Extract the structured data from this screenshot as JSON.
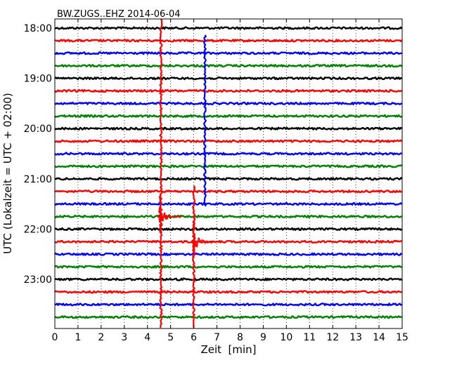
{
  "chart_data": {
    "type": "line",
    "title": "BW.ZUGS..EHZ 2014-06-04",
    "xlabel": "Zeit  [min]",
    "ylabel": "UTC (Lokalzeit = UTC + 02:00)",
    "xlim": [
      0,
      15
    ],
    "x_ticks": [
      "0",
      "1",
      "2",
      "3",
      "4",
      "5",
      "6",
      "7",
      "8",
      "9",
      "10",
      "11",
      "12",
      "13",
      "14",
      "15"
    ],
    "y_tick_labels": [
      "18:00",
      "19:00",
      "20:00",
      "21:00",
      "22:00",
      "23:00"
    ],
    "trace_interval_min": 15,
    "trace_start": "18:00",
    "trace_count": 24,
    "trace_colors": [
      "#000000",
      "#ff0000",
      "#0000ff",
      "#008000"
    ],
    "grid": true,
    "legend": "none",
    "events": [
      {
        "x_min": 4.58,
        "trace_start": 0,
        "trace_end": 23,
        "color": "#ff0000",
        "kind": "spike"
      },
      {
        "x_min": 6.48,
        "trace_start": 1,
        "trace_end": 14,
        "color": "#0000ff",
        "kind": "spike"
      },
      {
        "x_min": 6.0,
        "trace_start": 13,
        "trace_end": 23,
        "color": "#ff0000",
        "kind": "spike"
      },
      {
        "x_min": 4.55,
        "trace_start": 11,
        "trace_end": 18,
        "color": "#ff0000",
        "kind": "burst"
      },
      {
        "x_min": 6.0,
        "trace_start": 16,
        "trace_end": 18,
        "color": "#ff0000",
        "kind": "burst"
      }
    ]
  }
}
